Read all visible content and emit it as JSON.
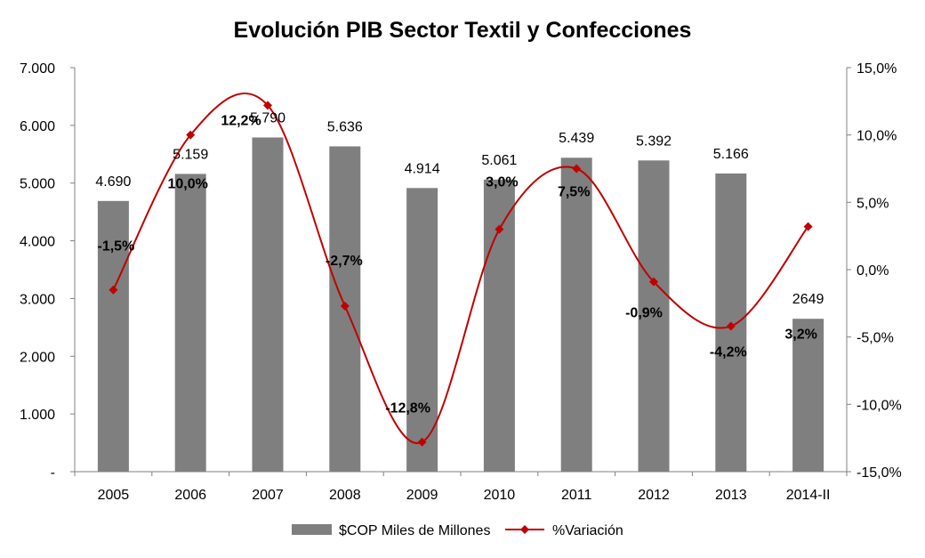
{
  "chart_data": {
    "type": "bar",
    "title": "Evolución PIB Sector Textil y Confecciones",
    "categories": [
      "2005",
      "2006",
      "2007",
      "2008",
      "2009",
      "2010",
      "2011",
      "2012",
      "2013",
      "2014-II"
    ],
    "series": [
      {
        "name": "$COP Miles de Millones",
        "type": "bar",
        "axis": "left",
        "color": "#7f7f7f",
        "values": [
          4690,
          5159,
          5790,
          5636,
          4914,
          5061,
          5439,
          5392,
          5166,
          2649
        ],
        "labels": [
          "4.690",
          "5.159",
          "5.790",
          "5.636",
          "4.914",
          "5.061",
          "5.439",
          "5.392",
          "5.166",
          "2649"
        ]
      },
      {
        "name": "%Variación",
        "type": "line",
        "smooth": true,
        "axis": "right",
        "color": "#c00000",
        "values": [
          -1.5,
          10.0,
          12.2,
          -2.7,
          -12.8,
          3.0,
          7.5,
          -0.9,
          -4.2,
          3.2
        ],
        "labels": [
          "-1,5%",
          "10,0%",
          "12,2%",
          "-2,7%",
          "-12,8%",
          "3,0%",
          "7,5%",
          "-0,9%",
          "-4,2%",
          "3,2%"
        ]
      }
    ],
    "y_left": {
      "ylim": [
        0,
        7000
      ],
      "ticks": [
        0,
        1000,
        2000,
        3000,
        4000,
        5000,
        6000,
        7000
      ],
      "tick_labels": [
        "-",
        "1.000",
        "2.000",
        "3.000",
        "4.000",
        "5.000",
        "6.000",
        "7.000"
      ]
    },
    "y_right": {
      "ylim": [
        -15,
        15
      ],
      "ticks": [
        -15,
        -10,
        -5,
        0,
        5,
        10,
        15
      ],
      "tick_labels": [
        "-15,0%",
        "-10,0%",
        "-5,0%",
        "0,0%",
        "5,0%",
        "10,0%",
        "15,0%"
      ]
    },
    "grid": false,
    "legend": {
      "position": "bottom"
    }
  }
}
